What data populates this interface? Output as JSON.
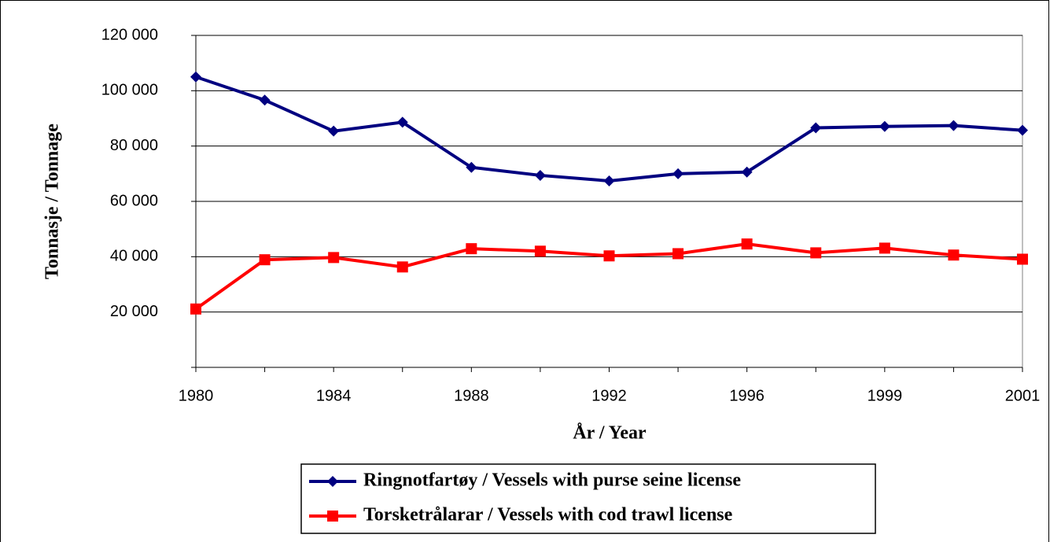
{
  "chart_data": {
    "type": "line",
    "x_label": "År / Year",
    "y_label": "Tonnasje / Tonnage",
    "categories": [
      "1980",
      null,
      "1984",
      null,
      "1988",
      null,
      "1992",
      null,
      "1996",
      null,
      "1999",
      null,
      "2001"
    ],
    "series": [
      {
        "name": "Ringnotfartøy / Vessels with purse seine license",
        "color": "#000080",
        "marker": "diamond",
        "values": [
          105000,
          96600,
          85400,
          88600,
          72300,
          69400,
          67400,
          70000,
          70600,
          86600,
          87100,
          87400,
          85700
        ]
      },
      {
        "name": "Torsketrålarar / Vessels with cod trawl license",
        "color": "#ff0000",
        "marker": "square",
        "values": [
          21100,
          38900,
          39700,
          36300,
          42900,
          42000,
          40300,
          41100,
          44600,
          41400,
          43100,
          40600,
          39100
        ]
      }
    ],
    "ylim": [
      0,
      120000
    ],
    "yticks": [
      {
        "value": 20000,
        "label": "20 000"
      },
      {
        "value": 40000,
        "label": "40 000"
      },
      {
        "value": 60000,
        "label": "60 000"
      },
      {
        "value": 80000,
        "label": "80 000"
      },
      {
        "value": 100000,
        "label": "100 000"
      },
      {
        "value": 120000,
        "label": "120 000"
      }
    ],
    "grid": true
  }
}
